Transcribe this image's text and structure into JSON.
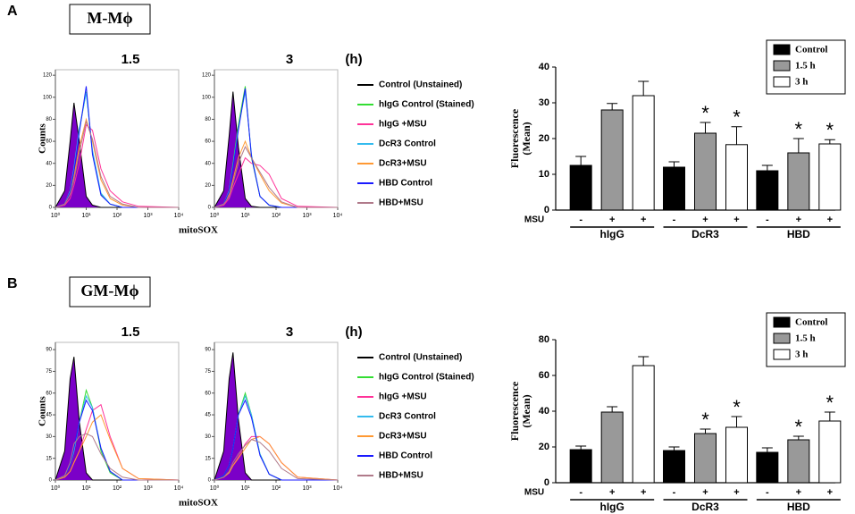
{
  "panels": [
    {
      "label": "A",
      "title": "M-Mϕ",
      "xlabel": "mitoSOX"
    },
    {
      "label": "B",
      "title": "GM-Mϕ",
      "xlabel": "mitoSOX"
    }
  ],
  "chart_data": [
    {
      "type": "line",
      "title": "1.5",
      "xlog": true,
      "x": [
        1,
        2,
        3,
        4,
        6,
        10,
        16,
        30,
        60,
        150,
        500,
        10000
      ],
      "xlim": [
        1,
        10000
      ],
      "xticks": [
        {
          "value": 1,
          "label": "10⁰"
        },
        {
          "value": 10,
          "label": "10¹"
        },
        {
          "value": 100,
          "label": "10²"
        },
        {
          "value": 1000,
          "label": "10³"
        },
        {
          "value": 10000,
          "label": "10⁴"
        }
      ],
      "ylim": [
        0,
        125
      ],
      "yticks": [
        0,
        20,
        40,
        60,
        80,
        100,
        120
      ],
      "ylabel": "Counts",
      "series": [
        {
          "color": "#000000",
          "fill": "#7b00c8",
          "values": [
            0,
            15,
            60,
            95,
            60,
            10,
            2,
            0,
            0,
            0,
            0,
            0
          ]
        },
        {
          "color": "#33dd33",
          "values": [
            0,
            3,
            15,
            35,
            70,
            105,
            50,
            12,
            3,
            0,
            0,
            0
          ]
        },
        {
          "color": "#ff3399",
          "values": [
            0,
            2,
            8,
            20,
            40,
            75,
            70,
            35,
            15,
            5,
            1,
            0
          ]
        },
        {
          "color": "#33bbee",
          "values": [
            0,
            3,
            15,
            36,
            72,
            104,
            52,
            13,
            3,
            0,
            0,
            0
          ]
        },
        {
          "color": "#ff9933",
          "values": [
            0,
            3,
            12,
            28,
            55,
            80,
            60,
            25,
            8,
            2,
            0,
            0
          ]
        },
        {
          "color": "#1a1aff",
          "values": [
            0,
            3,
            14,
            33,
            68,
            110,
            48,
            11,
            3,
            0,
            0,
            0
          ]
        },
        {
          "color": "#b07a8a",
          "values": [
            0,
            3,
            12,
            25,
            50,
            78,
            62,
            28,
            10,
            3,
            0,
            0
          ]
        }
      ]
    },
    {
      "type": "line",
      "title": "3",
      "title_unit": "(h)",
      "xlog": true,
      "x": [
        1,
        2,
        3,
        4,
        6,
        10,
        16,
        30,
        60,
        150,
        500,
        10000
      ],
      "xlim": [
        1,
        10000
      ],
      "xticks": [
        {
          "value": 1,
          "label": "10⁰"
        },
        {
          "value": 10,
          "label": "10¹"
        },
        {
          "value": 100,
          "label": "10²"
        },
        {
          "value": 1000,
          "label": "10³"
        },
        {
          "value": 10000,
          "label": "10⁴"
        }
      ],
      "ylim": [
        0,
        125
      ],
      "yticks": [
        0,
        20,
        40,
        60,
        80,
        100,
        120
      ],
      "series": [
        {
          "name": "Control (Unstained)",
          "color": "#000000",
          "fill": "#7b00c8",
          "values": [
            0,
            15,
            65,
            105,
            55,
            8,
            1,
            0,
            0,
            0,
            0,
            0
          ]
        },
        {
          "name": "hIgG Control (Stained)",
          "color": "#33dd33",
          "values": [
            0,
            3,
            15,
            40,
            75,
            110,
            45,
            10,
            2,
            0,
            0,
            0
          ]
        },
        {
          "name": "hIgG +MSU",
          "color": "#ff3399",
          "values": [
            0,
            2,
            8,
            18,
            30,
            45,
            40,
            38,
            30,
            8,
            1,
            0
          ]
        },
        {
          "name": "DcR3 Control",
          "color": "#33bbee",
          "values": [
            0,
            3,
            15,
            38,
            72,
            105,
            48,
            10,
            2,
            0,
            0,
            0
          ]
        },
        {
          "name": "DcR3+MSU",
          "color": "#ff9933",
          "values": [
            0,
            3,
            12,
            25,
            45,
            60,
            45,
            30,
            15,
            4,
            0,
            0
          ]
        },
        {
          "name": "HBD Control",
          "color": "#1a1aff",
          "values": [
            0,
            3,
            14,
            36,
            70,
            108,
            46,
            10,
            2,
            0,
            0,
            0
          ]
        },
        {
          "name": "HBD+MSU",
          "color": "#b07a8a",
          "values": [
            0,
            3,
            10,
            22,
            40,
            55,
            45,
            32,
            18,
            5,
            0,
            0
          ]
        }
      ]
    },
    {
      "type": "bar",
      "categories": [
        "hIgG",
        "DcR3",
        "HBD"
      ],
      "ylim": [
        0,
        40
      ],
      "yticks": [
        0,
        10,
        20,
        30,
        40
      ],
      "ylabel": [
        "Fluorescence",
        "(Mean)"
      ],
      "msu_label": "MSU",
      "legend": "upper right",
      "series": [
        {
          "name": "Control",
          "color": "#000000",
          "msu_sign": "-",
          "values": [
            12.5,
            12,
            11
          ],
          "errors": [
            2.5,
            1.5,
            1.5
          ]
        },
        {
          "name": "1.5 h",
          "color": "#999999",
          "msu_sign": "+",
          "values": [
            28,
            21.5,
            16
          ],
          "errors": [
            1.8,
            3,
            4
          ],
          "markers": [
            null,
            "*",
            "*"
          ]
        },
        {
          "name": "3 h",
          "color": "#ffffff",
          "msu_sign": "+",
          "values": [
            32,
            18.3,
            18.5
          ],
          "errors": [
            4,
            5,
            1.2
          ],
          "markers": [
            null,
            "*",
            "*"
          ]
        }
      ]
    },
    {
      "type": "line",
      "title": "1.5",
      "xlog": true,
      "x": [
        1,
        2,
        3,
        4,
        6,
        10,
        16,
        30,
        60,
        150,
        500,
        10000
      ],
      "xlim": [
        1,
        10000
      ],
      "xticks": [
        {
          "value": 1,
          "label": "10⁰"
        },
        {
          "value": 10,
          "label": "10¹"
        },
        {
          "value": 100,
          "label": "10²"
        },
        {
          "value": 1000,
          "label": "10³"
        },
        {
          "value": 10000,
          "label": "10⁴"
        }
      ],
      "ylim": [
        0,
        95
      ],
      "yticks": [
        0,
        15,
        30,
        45,
        60,
        75,
        90
      ],
      "ylabel": "Counts",
      "series": [
        {
          "color": "#000000",
          "fill": "#7b00c8",
          "values": [
            0,
            20,
            70,
            85,
            40,
            5,
            0,
            0,
            0,
            0,
            0,
            0
          ]
        },
        {
          "color": "#33dd33",
          "values": [
            0,
            3,
            10,
            20,
            40,
            62,
            50,
            20,
            5,
            0,
            0,
            0
          ]
        },
        {
          "color": "#ff3399",
          "values": [
            0,
            2,
            6,
            12,
            20,
            35,
            48,
            52,
            30,
            8,
            1,
            0
          ]
        },
        {
          "color": "#33bbee",
          "values": [
            0,
            3,
            10,
            20,
            40,
            58,
            50,
            22,
            6,
            0,
            0,
            0
          ]
        },
        {
          "color": "#ff9933",
          "values": [
            0,
            2,
            6,
            12,
            20,
            30,
            40,
            45,
            28,
            8,
            1,
            0
          ]
        },
        {
          "color": "#1a1aff",
          "values": [
            0,
            3,
            10,
            22,
            40,
            55,
            48,
            22,
            6,
            0,
            0,
            0
          ]
        },
        {
          "color": "#b07a8a",
          "values": [
            0,
            3,
            12,
            25,
            30,
            32,
            30,
            18,
            8,
            2,
            0,
            0
          ]
        }
      ]
    },
    {
      "type": "line",
      "title": "3",
      "title_unit": "(h)",
      "xlog": true,
      "x": [
        1,
        2,
        3,
        4,
        6,
        10,
        16,
        30,
        60,
        150,
        500,
        10000
      ],
      "xlim": [
        1,
        10000
      ],
      "xticks": [
        {
          "value": 1,
          "label": "10⁰"
        },
        {
          "value": 10,
          "label": "10¹"
        },
        {
          "value": 100,
          "label": "10²"
        },
        {
          "value": 1000,
          "label": "10³"
        },
        {
          "value": 10000,
          "label": "10⁴"
        }
      ],
      "ylim": [
        0,
        95
      ],
      "yticks": [
        0,
        15,
        30,
        45,
        60,
        75,
        90
      ],
      "series": [
        {
          "name": "Control (Unstained)",
          "color": "#000000",
          "fill": "#7b00c8",
          "values": [
            0,
            20,
            70,
            88,
            42,
            5,
            0,
            0,
            0,
            0,
            0,
            0
          ]
        },
        {
          "name": "hIgG Control (Stained)",
          "color": "#33dd33",
          "values": [
            0,
            3,
            10,
            22,
            45,
            60,
            45,
            18,
            4,
            0,
            0,
            0
          ]
        },
        {
          "name": "hIgG +MSU",
          "color": "#ff3399",
          "values": [
            0,
            2,
            5,
            10,
            16,
            25,
            30,
            30,
            25,
            12,
            2,
            0
          ]
        },
        {
          "name": "DcR3 Control",
          "color": "#33bbee",
          "values": [
            0,
            3,
            10,
            22,
            45,
            58,
            45,
            18,
            4,
            0,
            0,
            0
          ]
        },
        {
          "name": "DcR3+MSU",
          "color": "#ff9933",
          "values": [
            0,
            2,
            5,
            10,
            15,
            22,
            28,
            30,
            25,
            12,
            2,
            0
          ]
        },
        {
          "name": "HBD Control",
          "color": "#1a1aff",
          "values": [
            0,
            3,
            10,
            22,
            45,
            55,
            43,
            17,
            4,
            0,
            0,
            0
          ]
        },
        {
          "name": "HBD+MSU",
          "color": "#b07a8a",
          "values": [
            0,
            2,
            6,
            12,
            18,
            24,
            28,
            26,
            20,
            8,
            1,
            0
          ]
        }
      ]
    },
    {
      "type": "bar",
      "categories": [
        "hIgG",
        "DcR3",
        "HBD"
      ],
      "ylim": [
        0,
        80
      ],
      "yticks": [
        0,
        20,
        40,
        60,
        80
      ],
      "ylabel": [
        "Fluorescence",
        "(Mean)"
      ],
      "msu_label": "MSU",
      "legend": "upper right",
      "series": [
        {
          "name": "Control",
          "color": "#000000",
          "msu_sign": "-",
          "values": [
            18.5,
            18,
            17
          ],
          "errors": [
            2,
            2,
            2.5
          ]
        },
        {
          "name": "1.5 h",
          "color": "#999999",
          "msu_sign": "+",
          "values": [
            39.5,
            27.5,
            24
          ],
          "errors": [
            3,
            2.5,
            2
          ],
          "markers": [
            null,
            "*",
            "*"
          ]
        },
        {
          "name": "3 h",
          "color": "#ffffff",
          "msu_sign": "+",
          "values": [
            65.5,
            31,
            34.5
          ],
          "errors": [
            5,
            6,
            5
          ],
          "markers": [
            null,
            "*",
            "*"
          ]
        }
      ]
    }
  ]
}
